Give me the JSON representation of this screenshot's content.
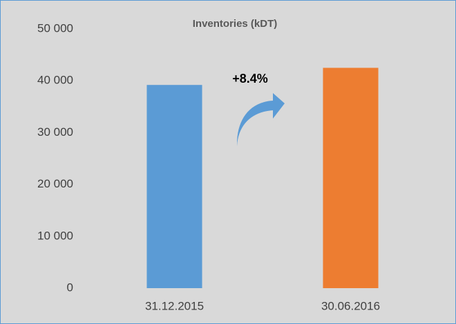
{
  "chart_data": {
    "type": "bar",
    "title": "Inventories (kDT)",
    "annotation": "+8.4%",
    "categories": [
      "31.12.2015",
      "30.06.2016"
    ],
    "values": [
      39200,
      42500
    ],
    "colors": [
      "#5b9bd5",
      "#ed7d31"
    ],
    "ylim": [
      0,
      50000
    ],
    "yticks": [
      0,
      {
        "value": 10000,
        "label": "10 000"
      },
      {
        "value": 20000,
        "label": "20 000"
      },
      {
        "value": 30000,
        "label": "30 000"
      },
      {
        "value": 40000,
        "label": "40 000"
      },
      {
        "value": 50000,
        "label": "50 000"
      }
    ],
    "grid": false
  }
}
